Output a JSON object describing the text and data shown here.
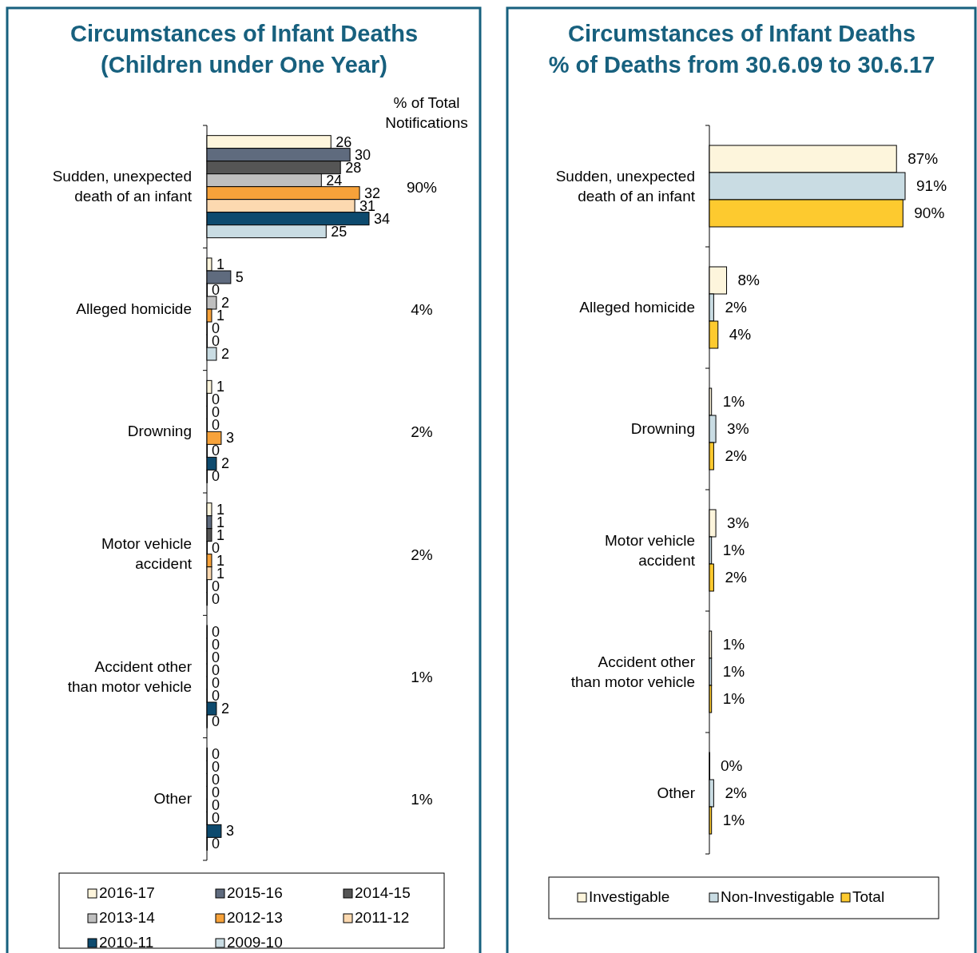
{
  "chart_data": [
    {
      "type": "bar",
      "orientation": "horizontal",
      "title": "Circumstances of Infant Deaths\n(Children under One Year)",
      "categories": [
        "Sudden, unexpected death of an infant",
        "Alleged homicide",
        "Drowning",
        "Motor vehicle accident",
        "Accident other than motor vehicle",
        "Other"
      ],
      "data_labels": true,
      "legend": "bottom",
      "series": [
        {
          "name": "2016-17",
          "color": "#fdf5dc",
          "values": [
            26,
            1,
            1,
            1,
            0,
            0
          ]
        },
        {
          "name": "2015-16",
          "color": "#5f6b7e",
          "values": [
            30,
            5,
            0,
            1,
            0,
            0
          ]
        },
        {
          "name": "2014-15",
          "color": "#555555",
          "values": [
            28,
            0,
            0,
            1,
            0,
            0
          ]
        },
        {
          "name": "2013-14",
          "color": "#bfbfbf",
          "values": [
            24,
            2,
            0,
            0,
            0,
            0
          ]
        },
        {
          "name": "2012-13",
          "color": "#f7a23a",
          "values": [
            32,
            1,
            3,
            1,
            0,
            0
          ]
        },
        {
          "name": "2011-12",
          "color": "#fcd9b0",
          "values": [
            31,
            0,
            0,
            1,
            0,
            0
          ]
        },
        {
          "name": "2010-11",
          "color": "#0d4a6e",
          "values": [
            34,
            0,
            2,
            0,
            2,
            3
          ]
        },
        {
          "name": "2009-10",
          "color": "#c9dce3",
          "values": [
            25,
            2,
            0,
            0,
            0,
            0
          ]
        }
      ],
      "annotations": [
        "% of Total Notifications",
        "90%",
        "4%",
        "2%",
        "2%",
        "1%",
        "1%"
      ]
    },
    {
      "type": "bar",
      "orientation": "horizontal",
      "title": "Circumstances of Infant Deaths\n% of Deaths from 30.6.09 to 30.6.17",
      "categories": [
        "Sudden, unexpected death of an infant",
        "Alleged homicide",
        "Drowning",
        "Motor vehicle accident",
        "Accident other than motor vehicle",
        "Other"
      ],
      "legend": "bottom",
      "series": [
        {
          "name": "Investigable",
          "color": "#fdf5dc",
          "values": [
            87,
            8,
            1,
            3,
            1,
            0
          ],
          "value_labels": [
            "87%",
            "8%",
            "1%",
            "3%",
            "1%",
            "0%"
          ]
        },
        {
          "name": "Non-Investigable",
          "color": "#c9dce3",
          "values": [
            91,
            2,
            3,
            1,
            1,
            2
          ],
          "value_labels": [
            "91%",
            "2%",
            "3%",
            "1%",
            "1%",
            "2%"
          ]
        },
        {
          "name": "Total",
          "color": "#fdca2f",
          "values": [
            90,
            4,
            2,
            2,
            1,
            1
          ],
          "value_labels": [
            "90%",
            "4%",
            "2%",
            "2%",
            "1%",
            "1%"
          ]
        }
      ]
    }
  ]
}
